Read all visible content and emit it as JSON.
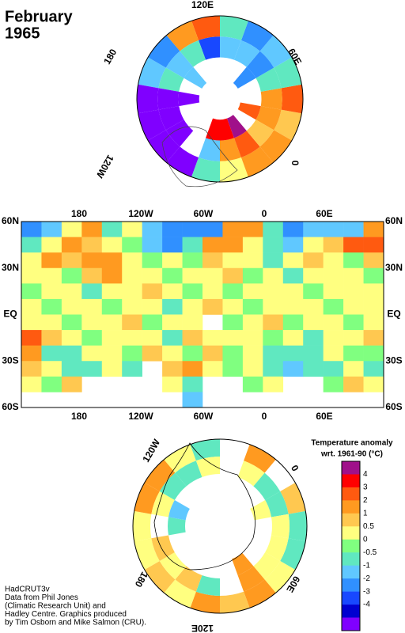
{
  "title": [
    "February",
    "1965"
  ],
  "north_map": {
    "lon_labels": [
      "120E",
      "60E",
      "0",
      "120W",
      "180"
    ],
    "cells": [
      [
        0.7,
        2,
        -0.7,
        -2,
        -3,
        -1,
        2,
        1,
        -3,
        -2,
        -4.5,
        -4.5,
        -4.5,
        -4.5,
        -1,
        0.3,
        1,
        1.5
      ],
      [
        1,
        1.5,
        -1,
        -3,
        -1.5,
        -2,
        -4,
        -0.7,
        -2,
        -1,
        -4.5,
        -4.5,
        -4.5,
        null,
        -2,
        1,
        2,
        0.7
      ],
      [
        2,
        null,
        null,
        -3,
        null,
        null,
        null,
        null,
        -1.5,
        null,
        -4.5,
        null,
        null,
        null,
        3,
        3,
        4.5,
        null
      ]
    ]
  },
  "grid_map": {
    "lon_labels": [
      "180",
      "120W",
      "60W",
      "0",
      "60E"
    ],
    "lat_labels": [
      "60N",
      "30N",
      "EQ",
      "30S",
      "60S"
    ],
    "cells": [
      [
        -3,
        -2,
        0,
        1,
        -0.7,
        0,
        -2,
        -3,
        -3,
        -3,
        1,
        1,
        -0.7,
        -3,
        -2,
        -1.5,
        -2,
        1.5
      ],
      [
        -1,
        0.3,
        1,
        0.7,
        0.3,
        -0.3,
        -2,
        -3,
        -0.7,
        1,
        1.5,
        0.3,
        -1,
        -2,
        0.3,
        0.7,
        2,
        2
      ],
      [
        0.3,
        1,
        0.7,
        1.5,
        1,
        0.3,
        -0.3,
        0,
        -0.3,
        0.7,
        0.3,
        0,
        -0.7,
        0.3,
        0.7,
        0,
        -0.3,
        0.7
      ],
      [
        0,
        0.3,
        -0.3,
        0.7,
        1.5,
        0.3,
        0,
        -0.3,
        0.3,
        0,
        0.7,
        -0.3,
        0.3,
        -0.7,
        0,
        0.3,
        0,
        -0.3
      ],
      [
        -0.3,
        0,
        0.3,
        -0.7,
        0,
        0.3,
        0.7,
        0,
        -0.3,
        0.3,
        -0.3,
        0.3,
        0,
        0.3,
        -0.3,
        0,
        0.3,
        0
      ],
      [
        0.3,
        -0.3,
        0,
        0.3,
        -0.3,
        0,
        0.3,
        -0.7,
        0,
        0.7,
        0,
        -0.3,
        0.3,
        0,
        0.3,
        -0.3,
        0,
        0.3
      ],
      [
        0,
        0.3,
        -0.3,
        0,
        0.3,
        0.7,
        -0.3,
        0,
        0.3,
        null,
        -0.3,
        0,
        0.7,
        -0.3,
        0,
        0.3,
        -0.3,
        0
      ],
      [
        2,
        0.7,
        0,
        -0.3,
        0.3,
        0,
        0.3,
        -0.7,
        0.7,
        0.3,
        0,
        0.3,
        -0.3,
        0,
        -0.7,
        0.3,
        0,
        0.7
      ],
      [
        1.5,
        -0.7,
        -1,
        0.3,
        0,
        -0.3,
        0.7,
        0,
        -0.3,
        0.7,
        -0.3,
        0,
        -0.7,
        -1,
        -0.7,
        0.3,
        -0.3,
        -0.3
      ],
      [
        0.7,
        0,
        -1,
        -0.7,
        0.3,
        -0.7,
        null,
        0.7,
        1,
        0.3,
        -0.3,
        0.3,
        -1,
        -2,
        -1,
        -0.7,
        0.3,
        -0.7
      ],
      [
        0.3,
        -0.3,
        0.7,
        null,
        null,
        null,
        null,
        0.3,
        -1,
        null,
        null,
        -0.3,
        0.3,
        null,
        null,
        -0.3,
        0.7,
        0.3
      ],
      [
        null,
        null,
        null,
        null,
        null,
        null,
        null,
        null,
        -2,
        null,
        null,
        null,
        null,
        null,
        null,
        null,
        null,
        null
      ]
    ]
  },
  "south_map": {
    "lon_labels": [
      "120W",
      "0",
      "60E",
      "120E",
      "180"
    ],
    "cells": [
      [
        0.7,
        -1,
        -0.7,
        0,
        1,
        0.7,
        1,
        0.3,
        0.7,
        0.3,
        0.3,
        1,
        1,
        0,
        -0.7,
        null,
        1.5,
        null
      ],
      [
        -0.7,
        0.3,
        0,
        0.3,
        1.5,
        null,
        -1,
        0.7,
        0.3,
        0.7,
        null,
        0.3,
        -1,
        -0.7,
        0,
        null,
        0,
        -0.7
      ],
      [
        0.3,
        null,
        null,
        null,
        1.5,
        null,
        null,
        null,
        null,
        null,
        -1,
        -1.5,
        null,
        null,
        null,
        null,
        null,
        null
      ]
    ]
  },
  "legend": {
    "title": [
      "Temperature anomaly",
      "wrt. 1961-90  (°C)"
    ],
    "levels": [
      4,
      3,
      2,
      1,
      0.5,
      0,
      -0.5,
      -1,
      -2,
      -3,
      -4
    ],
    "colors": [
      "#a0108a",
      "#ff0000",
      "#ff5a10",
      "#ff9a20",
      "#ffc850",
      "#ffff80",
      "#80ff80",
      "#60e8c0",
      "#60c8ff",
      "#3090ff",
      "#1848ff",
      "#0000d0",
      "#8000ff"
    ]
  },
  "credits": [
    "HadCRUT3v",
    "Data from Phil Jones",
    "(Climatic Research Unit) and",
    "Hadley Centre.  Graphics produced",
    "by Tim Osborn and Mike Salmon (CRU)."
  ]
}
